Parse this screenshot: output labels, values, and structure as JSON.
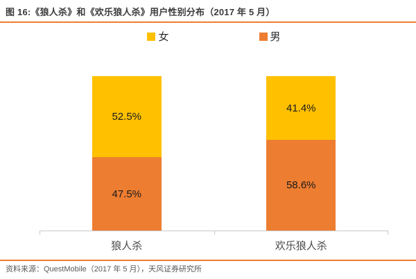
{
  "header": {
    "title": "图 16:《狼人杀》和《欢乐狼人杀》用户性别分布（2017 年 5 月）"
  },
  "chart_data": {
    "type": "bar",
    "subtype": "stacked-100-percent",
    "title": "图 16:《狼人杀》和《欢乐狼人杀》用户性别分布（2017 年 5 月）",
    "categories": [
      "狼人杀",
      "欢乐狼人杀"
    ],
    "series": [
      {
        "name": "女",
        "color": "#FFC000",
        "values": [
          52.5,
          41.4
        ],
        "labels": [
          "52.5%",
          "41.4%"
        ]
      },
      {
        "name": "男",
        "color": "#ED7D31",
        "values": [
          47.5,
          58.6
        ],
        "labels": [
          "47.5%",
          "58.6%"
        ]
      }
    ],
    "stack_order_top_to_bottom": [
      "女",
      "男"
    ],
    "ylim": [
      0,
      100
    ],
    "grid": false,
    "legend_position": "top",
    "axis_color": "#c8c8c8",
    "xlabel": "",
    "ylabel": ""
  },
  "footer": {
    "source": "资料来源：QuestMobile（2017 年 5 月），天风证券研究所"
  },
  "colors": {
    "accent_rule": "#ED7D31",
    "female": "#FFC000",
    "male": "#ED7D31",
    "title_text": "#3b3b3b",
    "source_text": "#595959",
    "data_label_text": "#1a1a1a"
  }
}
